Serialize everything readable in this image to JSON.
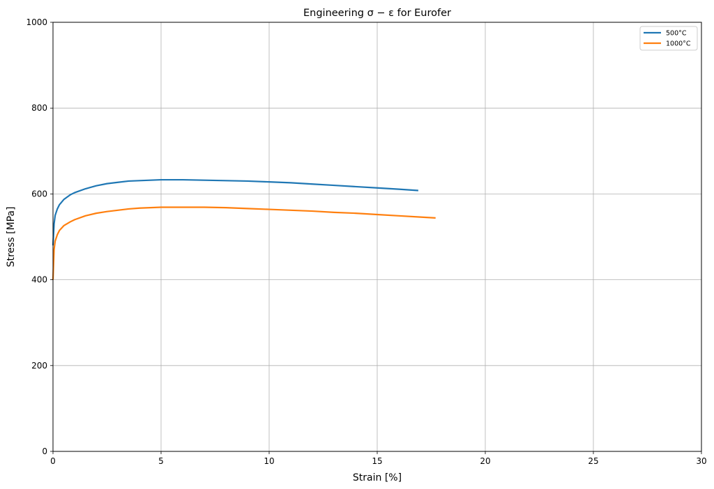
{
  "chart_data": {
    "type": "line",
    "title": "Engineering σ − ε for Eurofer",
    "xlabel": "Strain [%]",
    "ylabel": "Stress [MPa]",
    "xlim": [
      0,
      30
    ],
    "ylim": [
      0,
      1000
    ],
    "xticks": [
      0,
      5,
      10,
      15,
      20,
      25,
      30
    ],
    "yticks": [
      0,
      200,
      400,
      600,
      800,
      1000
    ],
    "grid": true,
    "legend_position": "top-right",
    "series": [
      {
        "name": "500°C",
        "color": "#1f77b4",
        "x": [
          0,
          0.05,
          0.1,
          0.2,
          0.3,
          0.5,
          0.8,
          1.0,
          1.5,
          2.0,
          2.5,
          3.0,
          3.5,
          4.0,
          4.5,
          5.0,
          5.5,
          6.0,
          7.0,
          8.0,
          9.0,
          10.0,
          11.0,
          12.0,
          13.0,
          14.0,
          15.0,
          16.0,
          16.9
        ],
        "y": [
          480,
          530,
          550,
          565,
          575,
          587,
          598,
          603,
          612,
          619,
          624,
          627,
          630,
          631,
          632,
          633,
          633,
          633,
          632,
          631,
          630,
          628,
          626,
          623,
          620,
          617,
          614,
          611,
          608
        ]
      },
      {
        "name": "1000°C",
        "color": "#ff7f0e",
        "x": [
          0,
          0.05,
          0.1,
          0.2,
          0.3,
          0.5,
          0.8,
          1.0,
          1.5,
          2.0,
          2.5,
          3.0,
          3.5,
          4.0,
          4.5,
          5.0,
          5.5,
          6.0,
          7.0,
          8.0,
          9.0,
          10.0,
          11.0,
          12.0,
          13.0,
          14.0,
          15.0,
          16.0,
          17.0,
          17.7
        ],
        "y": [
          400,
          470,
          490,
          505,
          515,
          526,
          535,
          540,
          549,
          555,
          559,
          562,
          565,
          567,
          568,
          569,
          569,
          569,
          569,
          568,
          566,
          564,
          562,
          560,
          557,
          555,
          552,
          549,
          546,
          544
        ]
      }
    ]
  }
}
